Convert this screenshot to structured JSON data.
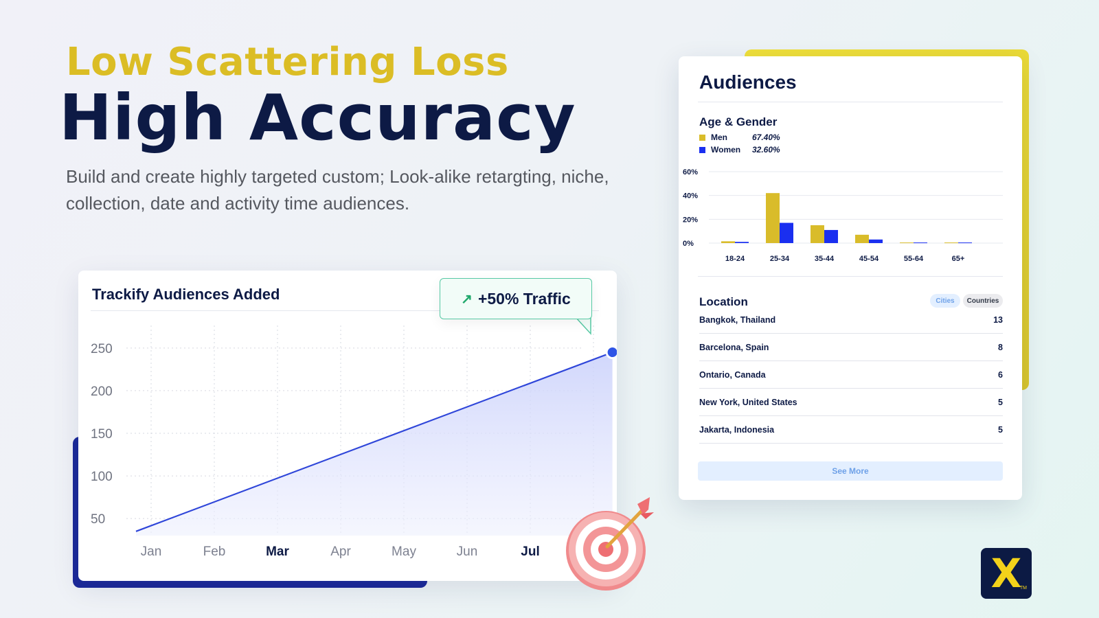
{
  "hero": {
    "subtitle": "Low Scattering Loss",
    "title": "High Accuracy",
    "description": "Build and create highly targeted custom; Look-alike retargting, niche, collection, date and activity time audiences."
  },
  "traffic_card": {
    "title": "Trackify Audiences Added",
    "badge_label": "+50% Traffic",
    "badge_icon": "arrow-up-right-icon"
  },
  "audiences_card": {
    "title": "Audiences",
    "age_gender_title": "Age & Gender",
    "legend": [
      {
        "name": "Men",
        "value": "67.40%"
      },
      {
        "name": "Women",
        "value": "32.60%"
      }
    ],
    "location_title": "Location",
    "filters": {
      "cities": "Cities",
      "countries": "Countries"
    },
    "locations": [
      {
        "city": "Bangkok, Thailand",
        "count": "13"
      },
      {
        "city": "Barcelona, Spain",
        "count": "8"
      },
      {
        "city": "Ontario, Canada",
        "count": "6"
      },
      {
        "city": "New York, United States",
        "count": "5"
      },
      {
        "city": "Jakarta, Indonesia",
        "count": "5"
      }
    ],
    "see_more": "See More"
  },
  "logo_mark": "X",
  "logo_tm": "TM",
  "colors": {
    "men": "#d9bc2a",
    "women": "#1a2ff0",
    "line": "#2f46d9",
    "navy": "#0d1a45",
    "accent_yellow": "#dbbd25"
  },
  "chart_data": [
    {
      "type": "area",
      "title": "Trackify Audiences Added",
      "categories": [
        "Jan",
        "Feb",
        "Mar",
        "Apr",
        "May",
        "Jun",
        "Jul"
      ],
      "x": [
        0,
        7.3
      ],
      "values": [
        35,
        245
      ],
      "yticks": [
        250,
        200,
        150,
        100,
        50
      ],
      "ylim": [
        30,
        270
      ],
      "bold_labels": [
        "Mar",
        "Jul"
      ],
      "grid": true,
      "annotation": "+50% Traffic"
    },
    {
      "type": "bar",
      "title": "Age & Gender",
      "categories": [
        "18-24",
        "25-34",
        "35-44",
        "45-54",
        "55-64",
        "65+"
      ],
      "series": [
        {
          "name": "Men",
          "values": [
            1.5,
            42,
            15,
            7,
            0.5,
            0.5
          ]
        },
        {
          "name": "Women",
          "values": [
            1,
            17,
            11,
            3,
            0.5,
            0.5
          ]
        }
      ],
      "yticks": [
        "60%",
        "40%",
        "20%",
        "0%"
      ],
      "ylim": [
        0,
        60
      ],
      "grid": true
    }
  ]
}
